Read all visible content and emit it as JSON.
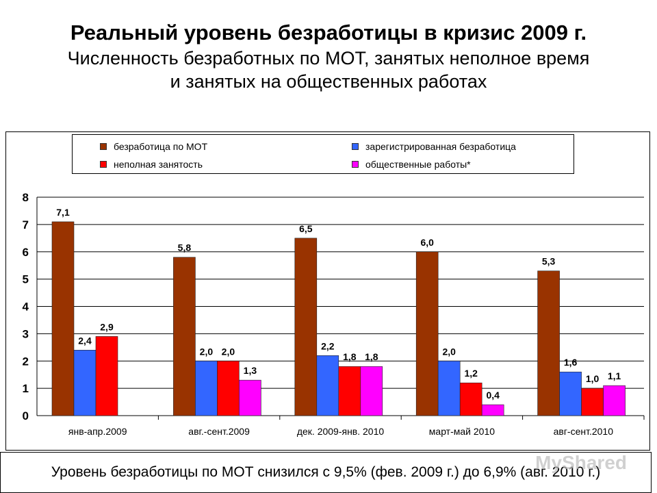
{
  "title": "Реальный уровень безработицы в кризис 2009 г.",
  "subtitle_line1": "Численность безработных по МОТ, занятых неполное время",
  "subtitle_line2": "и занятых на общественных работах",
  "footer_text": "Уровень безработицы по МОТ снизился с 9,5% (фев. 2009 г.) до 6,9% (авг. 2010 г.)",
  "watermark": "MyShared",
  "chart_data": {
    "type": "bar",
    "categories": [
      "янв-апр.2009",
      "авг.-сент.2009",
      "дек. 2009-янв. 2010",
      "март-май 2010",
      "авг-сент.2010"
    ],
    "ylim": [
      0,
      8
    ],
    "yticks": [
      "0",
      "1",
      "2",
      "3",
      "4",
      "5",
      "6",
      "7",
      "8"
    ],
    "grid": true,
    "legend_position": "top",
    "series": [
      {
        "name": "безработица по МОТ",
        "color": "#993300",
        "values": [
          7.1,
          5.8,
          6.5,
          6.0,
          5.3
        ],
        "labels": [
          "7,1",
          "5,8",
          "6,5",
          "6,0",
          "5,3"
        ]
      },
      {
        "name": "зарегистрированная безработица",
        "color": "#3366ff",
        "values": [
          2.4,
          2.0,
          2.2,
          2.0,
          1.6
        ],
        "labels": [
          "2,4",
          "2,0",
          "2,2",
          "2,0",
          "1,6"
        ]
      },
      {
        "name": "неполная занятость",
        "color": "#ff0000",
        "values": [
          2.9,
          2.0,
          1.8,
          1.2,
          1.0
        ],
        "labels": [
          "2,9",
          "2,0",
          "1,8",
          "1,2",
          "1,0"
        ]
      },
      {
        "name": "общественные работы*",
        "color": "#ff00ff",
        "values": [
          null,
          1.3,
          1.8,
          0.4,
          1.1
        ],
        "labels": [
          "",
          "1,3",
          "1,8",
          "0,4",
          "1,1"
        ]
      }
    ]
  }
}
